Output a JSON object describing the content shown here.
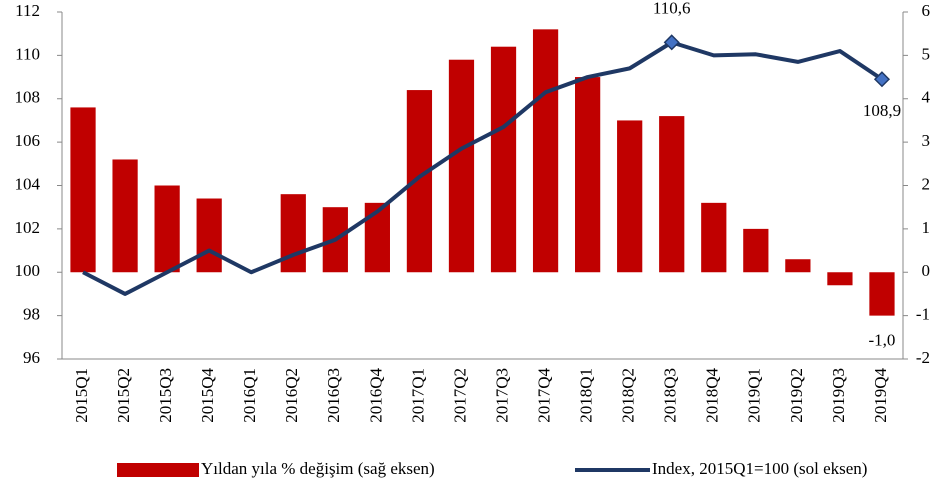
{
  "chart_data": {
    "type": "bar_line",
    "categories": [
      "2015Q1",
      "2015Q2",
      "2015Q3",
      "2015Q4",
      "2016Q1",
      "2016Q2",
      "2016Q3",
      "2016Q4",
      "2017Q1",
      "2017Q2",
      "2017Q3",
      "2017Q4",
      "2018Q1",
      "2018Q2",
      "2018Q3",
      "2018Q4",
      "2019Q1",
      "2019Q2",
      "2019Q3",
      "2019Q4"
    ],
    "series": [
      {
        "name": "Yıldan yıla % değişim (sağ eksen)",
        "type": "bar",
        "axis": "y2",
        "color": "#c00000",
        "values": [
          3.8,
          2.6,
          2.0,
          1.7,
          0,
          1.8,
          1.5,
          1.6,
          4.2,
          4.9,
          5.2,
          5.6,
          4.5,
          3.5,
          3.6,
          1.6,
          1.0,
          0.3,
          -0.3,
          -1.0
        ],
        "value_labels": [
          null,
          null,
          null,
          null,
          null,
          null,
          null,
          null,
          null,
          null,
          null,
          null,
          null,
          null,
          null,
          null,
          null,
          null,
          null,
          "-1,0"
        ]
      },
      {
        "name": "Index, 2015Q1=100 (sol eksen)",
        "type": "line",
        "axis": "y",
        "color": "#1f3864",
        "values": [
          100,
          99,
          100,
          101,
          100,
          100.8,
          101.5,
          102.8,
          104.4,
          105.7,
          106.7,
          108.3,
          109.0,
          109.4,
          110.6,
          110.0,
          110.05,
          109.7,
          110.2,
          108.9
        ],
        "value_labels": [
          null,
          null,
          null,
          null,
          null,
          null,
          null,
          null,
          null,
          null,
          null,
          null,
          null,
          null,
          "110,6",
          null,
          null,
          null,
          null,
          "108,9"
        ]
      }
    ],
    "ylim": [
      96,
      112
    ],
    "yticks": [
      96,
      98,
      100,
      102,
      104,
      106,
      108,
      110,
      112
    ],
    "y2lim": [
      -2,
      6
    ],
    "y2ticks": [
      -2,
      -1,
      0,
      1,
      2,
      3,
      4,
      5,
      6
    ],
    "legend": "bottom"
  }
}
